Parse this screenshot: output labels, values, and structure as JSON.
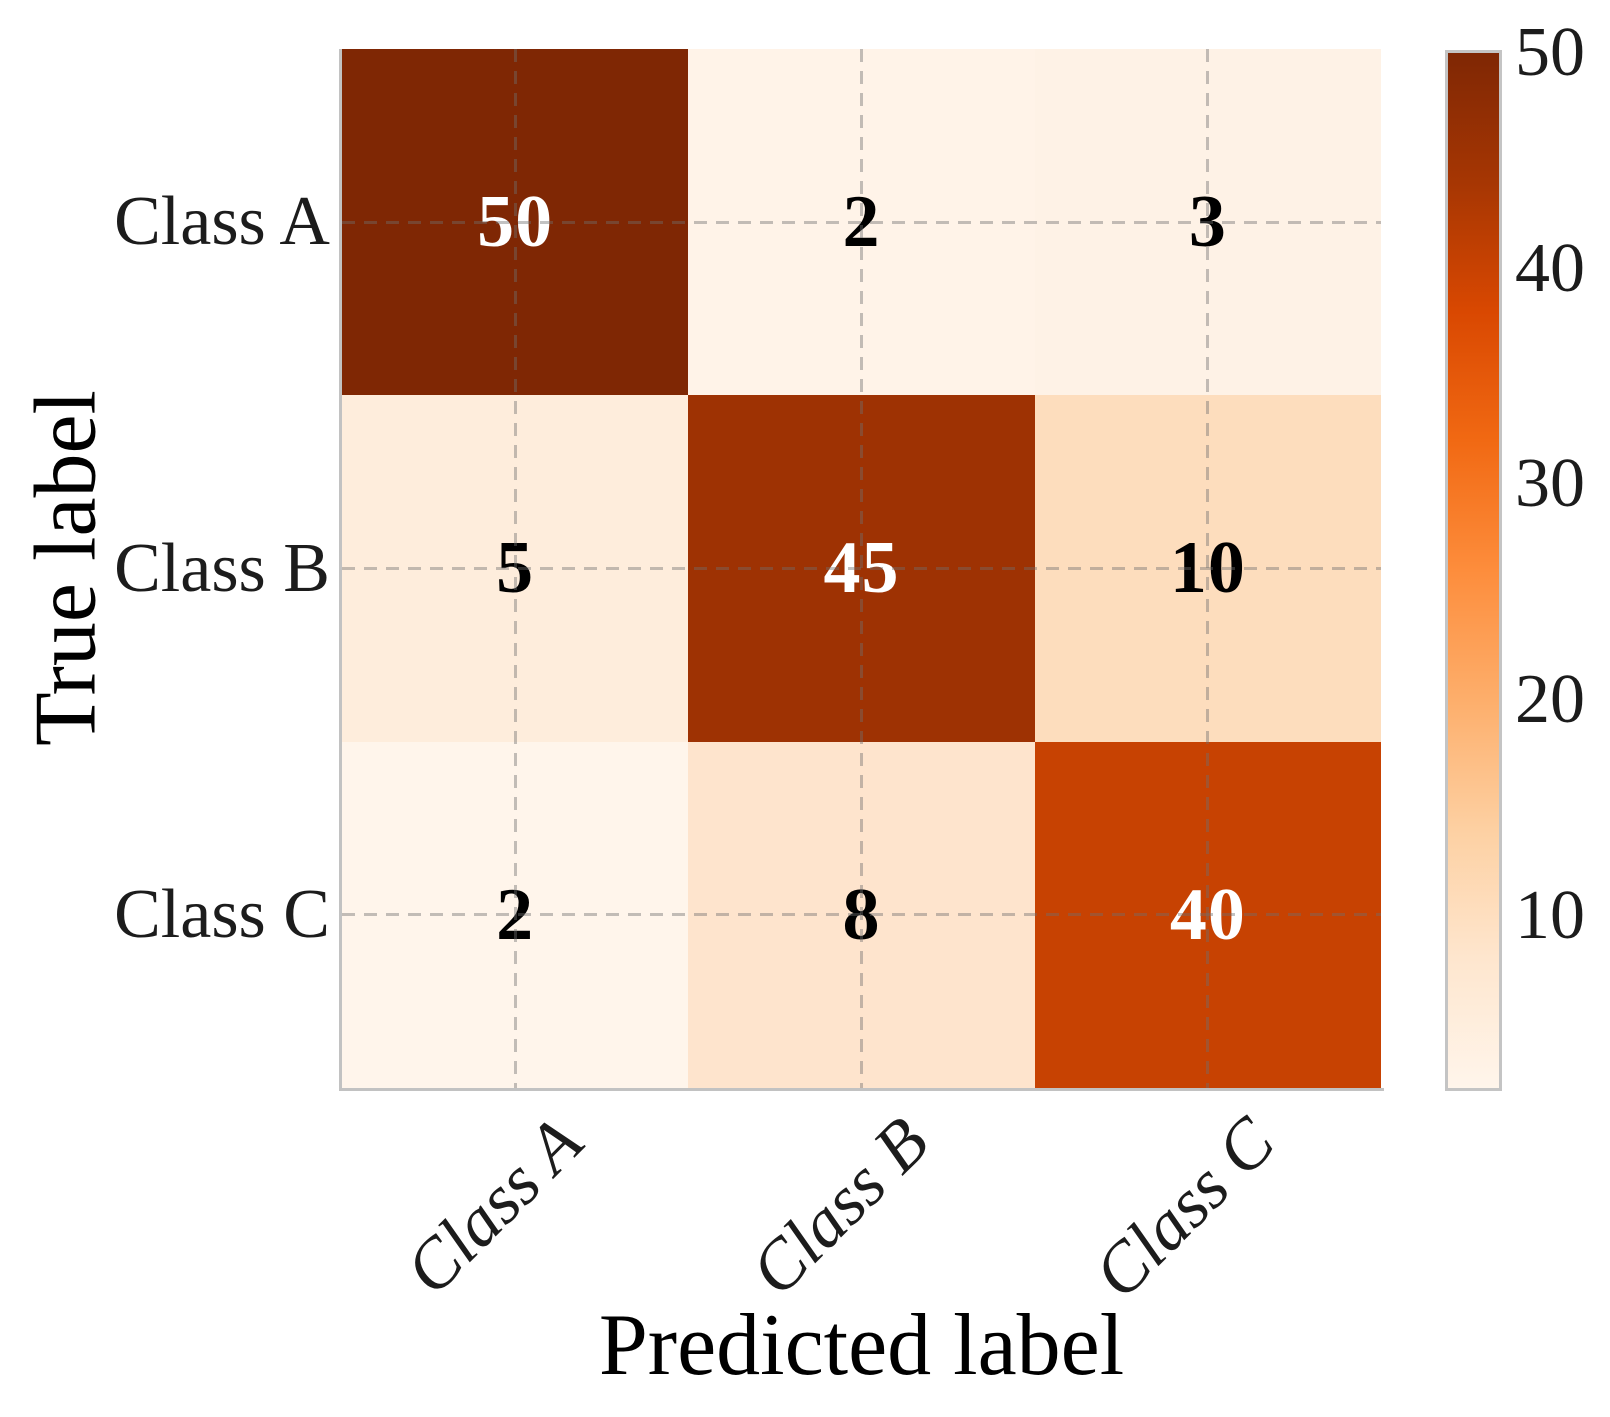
{
  "chart_data": {
    "type": "heatmap",
    "title": "",
    "xlabel": "Predicted label",
    "ylabel": "True label",
    "categories_x": [
      "Class A",
      "Class B",
      "Class C"
    ],
    "categories_y": [
      "Class A",
      "Class B",
      "Class C"
    ],
    "matrix": [
      [
        50,
        2,
        3
      ],
      [
        5,
        45,
        10
      ],
      [
        2,
        8,
        40
      ]
    ],
    "cell_colors": [
      [
        "#7f2704",
        "#fff3e8",
        "#fef2e6"
      ],
      [
        "#feeddc",
        "#9e3203",
        "#fdddbd"
      ],
      [
        "#fff5eb",
        "#fee4cd",
        "#c74202"
      ]
    ],
    "value_text_colors": [
      [
        "#ffffff",
        "#000000",
        "#000000"
      ],
      [
        "#000000",
        "#ffffff",
        "#000000"
      ],
      [
        "#000000",
        "#000000",
        "#ffffff"
      ]
    ],
    "colormap": "Oranges",
    "grid": "dashed, at cell centers",
    "legend_position": "right colorbar",
    "colorbar": {
      "vmin": 2,
      "vmax": 50,
      "tick_labels": [
        "50",
        "40",
        "30",
        "20",
        "10"
      ],
      "tick_values": [
        50,
        40,
        30,
        20,
        10
      ],
      "gradient_top_to_bottom": [
        "#7f2704",
        "#a63603",
        "#d94801",
        "#f16913",
        "#fd8d3c",
        "#fdae6b",
        "#fdd0a2",
        "#fee6ce",
        "#fff5eb"
      ]
    },
    "accent_colors": {
      "spine": "#c2c2c2",
      "tick_text": "#1c1c1c"
    }
  }
}
